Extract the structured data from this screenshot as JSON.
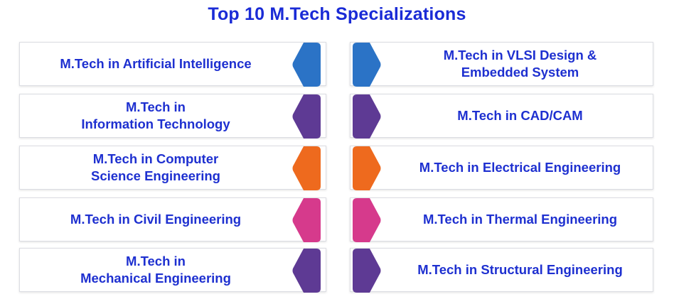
{
  "title": "Top 10 M.Tech Specializations",
  "left_items": [
    {
      "label": "M.Tech in Artificial Intelligence",
      "color": "#2b73c6"
    },
    {
      "label": "M.Tech in\nInformation Technology",
      "color": "#5e3a94"
    },
    {
      "label": "M.Tech in Computer\nScience Engineering",
      "color": "#ee6a1e"
    },
    {
      "label": "M.Tech in Civil Engineering",
      "color": "#d63a8c"
    },
    {
      "label": "M.Tech in\nMechanical Engineering",
      "color": "#5e3a94"
    }
  ],
  "right_items": [
    {
      "label": "M.Tech in VLSI Design &\nEmbedded System",
      "color": "#2b73c6"
    },
    {
      "label": "M.Tech in CAD/CAM",
      "color": "#5e3a94"
    },
    {
      "label": "M.Tech in Electrical Engineering",
      "color": "#ee6a1e"
    },
    {
      "label": "M.Tech in Thermal Engineering",
      "color": "#d63a8c"
    },
    {
      "label": "M.Tech in Structural Engineering",
      "color": "#5e3a94"
    }
  ]
}
